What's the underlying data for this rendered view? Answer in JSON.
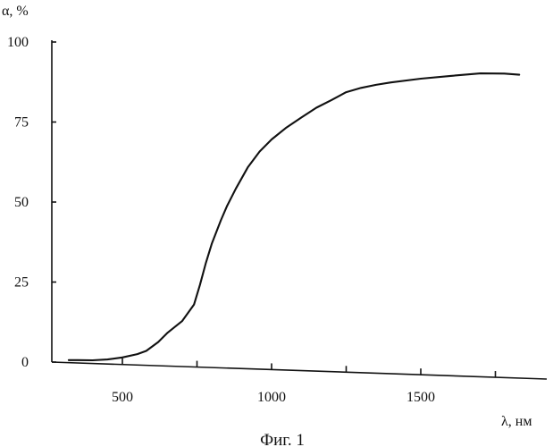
{
  "chart_data": {
    "type": "line",
    "ylabel": "α, %",
    "xlabel": "λ, нм",
    "caption": "Фиг. 1",
    "xlim": [
      250,
      1850
    ],
    "ylim": [
      0,
      100
    ],
    "x_ticks": [
      500,
      1000,
      1500
    ],
    "x_ticks_unlabeled": [
      750,
      1250,
      1750
    ],
    "y_ticks": [
      0,
      25,
      50,
      75,
      100
    ],
    "grid": false,
    "colors": {
      "line": "#111111",
      "axis": "#111111"
    },
    "series": [
      {
        "x": [
          320,
          350,
          400,
          450,
          500,
          550,
          580,
          620,
          650,
          700,
          740,
          760,
          780,
          800,
          830,
          850,
          880,
          920,
          960,
          1000,
          1050,
          1100,
          1150,
          1200,
          1250,
          1300,
          1350,
          1400,
          1500,
          1600,
          1700,
          1780,
          1830
        ],
        "y": [
          0.8,
          0.9,
          1.0,
          1.4,
          2.2,
          3.4,
          4.5,
          7.4,
          10.3,
          14.2,
          19.5,
          25.7,
          32.7,
          38.8,
          46.1,
          50.5,
          56.1,
          62.9,
          68.0,
          71.9,
          75.8,
          79.1,
          82.3,
          84.8,
          87.5,
          89.0,
          90.1,
          91.0,
          92.5,
          93.7,
          94.8,
          95.0,
          94.8
        ]
      }
    ]
  }
}
